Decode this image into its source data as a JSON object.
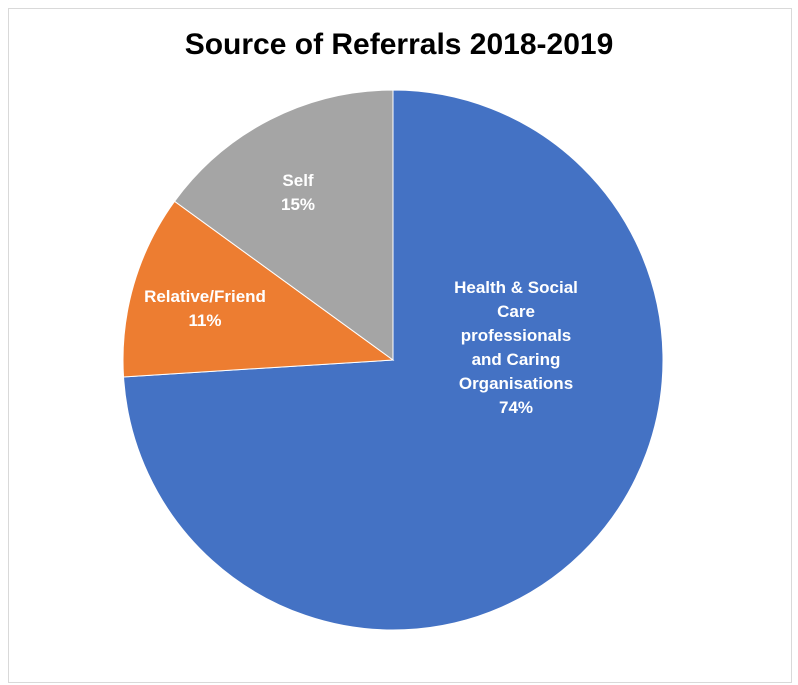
{
  "chart_data": {
    "type": "pie",
    "title": "Source of Referrals 2018-2019",
    "slices": [
      {
        "name": "Health & Social Care professionals and Caring Organisations",
        "value": 74,
        "value_label": "74%",
        "label_lines": [
          "Health & Social",
          "Care",
          "professionals",
          "and Caring",
          "Organisations"
        ],
        "color": "#4472c4"
      },
      {
        "name": "Relative/Friend",
        "value": 11,
        "value_label": "11%",
        "label_lines": [
          "Relative/Friend"
        ],
        "color": "#ed7d31"
      },
      {
        "name": "Self",
        "value": 15,
        "value_label": "15%",
        "label_lines": [
          "Self"
        ],
        "color": "#a5a5a5"
      }
    ],
    "start": "12 o'clock",
    "direction": "clockwise",
    "legend": "none"
  }
}
